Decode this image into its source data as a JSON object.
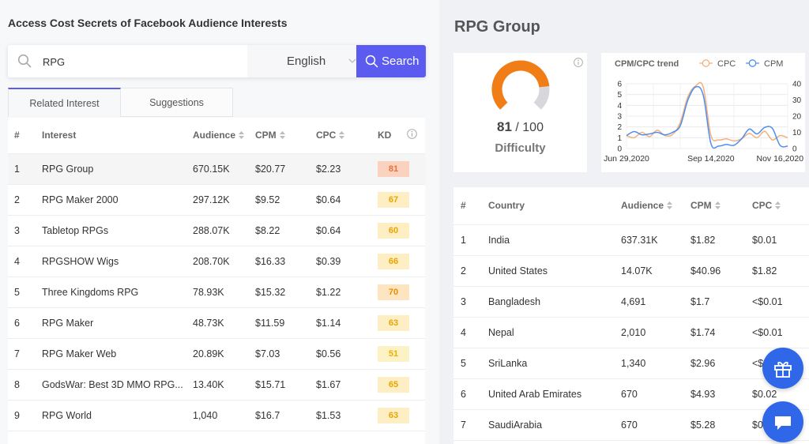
{
  "page_heading": "Access Cost Secrets of Facebook Audience Interests",
  "search": {
    "value": "RPG",
    "language": "English",
    "button_label": "Search"
  },
  "tabs": [
    {
      "label": "Related Interest",
      "active": true
    },
    {
      "label": "Suggestions",
      "active": false
    }
  ],
  "interest_table": {
    "headers": {
      "num": "#",
      "interest": "Interest",
      "audience": "Audience",
      "cpm": "CPM",
      "cpc": "CPC",
      "kd": "KD"
    },
    "rows": [
      {
        "num": "1",
        "interest": "RPG Group",
        "audience": "670.15K",
        "cpm": "$20.77",
        "cpc": "$2.23",
        "kd": "81",
        "kd_bg": "#fbd2bf",
        "kd_color": "#e8703a"
      },
      {
        "num": "2",
        "interest": "RPG Maker 2000",
        "audience": "297.12K",
        "cpm": "$9.52",
        "cpc": "$0.64",
        "kd": "67",
        "kd_bg": "#fdefc3",
        "kd_color": "#e9a400"
      },
      {
        "num": "3",
        "interest": "Tabletop RPGs",
        "audience": "288.07K",
        "cpm": "$8.22",
        "cpc": "$0.64",
        "kd": "60",
        "kd_bg": "#fdefc3",
        "kd_color": "#e9a400"
      },
      {
        "num": "4",
        "interest": "RPGSHOW Wigs",
        "audience": "208.70K",
        "cpm": "$16.33",
        "cpc": "$0.39",
        "kd": "66",
        "kd_bg": "#fdefc3",
        "kd_color": "#e9a400"
      },
      {
        "num": "5",
        "interest": "Three Kingdoms RPG",
        "audience": "78.93K",
        "cpm": "$15.32",
        "cpc": "$1.22",
        "kd": "70",
        "kd_bg": "#fde5c2",
        "kd_color": "#e98d00"
      },
      {
        "num": "6",
        "interest": "RPG Maker",
        "audience": "48.73K",
        "cpm": "$11.59",
        "cpc": "$1.14",
        "kd": "63",
        "kd_bg": "#fdefc3",
        "kd_color": "#e9a400"
      },
      {
        "num": "7",
        "interest": "RPG Maker Web",
        "audience": "20.89K",
        "cpm": "$7.03",
        "cpc": "$0.56",
        "kd": "51",
        "kd_bg": "#fdf2c6",
        "kd_color": "#e9b000"
      },
      {
        "num": "8",
        "interest": "GodsWar: Best 3D MMO RPG...",
        "audience": "13.40K",
        "cpm": "$15.71",
        "cpc": "$1.67",
        "kd": "65",
        "kd_bg": "#fdefc3",
        "kd_color": "#e9a400"
      },
      {
        "num": "9",
        "interest": "RPG World",
        "audience": "1,040",
        "cpm": "$16.7",
        "cpc": "$1.53",
        "kd": "63",
        "kd_bg": "#fdefc3",
        "kd_color": "#e9a400"
      }
    ]
  },
  "group": {
    "title": "RPG Group",
    "difficulty_score": "81",
    "difficulty_max": "/ 100",
    "difficulty_label": "Difficulty",
    "difficulty_fraction": 0.81
  },
  "chart_data": {
    "type": "line",
    "title": "CPM/CPC trend",
    "legend": [
      "CPC",
      "CPM"
    ],
    "legend_position": "top",
    "x_tick_labels": [
      "Jun 29,2020",
      "Sep 14,2020",
      "Nov 16,2020"
    ],
    "x": [
      "2020-06-29",
      "2020-07-06",
      "2020-07-13",
      "2020-07-20",
      "2020-07-27",
      "2020-08-03",
      "2020-08-10",
      "2020-08-17",
      "2020-08-24",
      "2020-08-31",
      "2020-09-07",
      "2020-09-14",
      "2020-09-21",
      "2020-09-28",
      "2020-10-05",
      "2020-10-12",
      "2020-10-19",
      "2020-10-26",
      "2020-11-02",
      "2020-11-09",
      "2020-11-16",
      "2020-11-23"
    ],
    "left_axis": {
      "ylim": [
        0,
        6
      ],
      "ticks": [
        0,
        1,
        2,
        3,
        4,
        5,
        6
      ]
    },
    "right_axis": {
      "ylim": [
        0,
        40
      ],
      "ticks": [
        0,
        10,
        20,
        30,
        40
      ]
    },
    "grid": true,
    "series": [
      {
        "name": "CPC",
        "axis": "left",
        "color": "#f5b07a",
        "values": [
          1.2,
          1.0,
          1.5,
          1.1,
          1.7,
          1.2,
          1.3,
          2.4,
          4.8,
          5.8,
          5.7,
          1.2,
          0.8,
          0.9,
          0.7,
          0.9,
          1.4,
          1.0,
          1.6,
          0.8,
          1.2,
          1.0
        ]
      },
      {
        "name": "CPM",
        "axis": "right",
        "color": "#4d8ef0",
        "values": [
          8.0,
          10.5,
          8.5,
          9.0,
          10.0,
          8.5,
          10.0,
          14.0,
          30.0,
          38.0,
          33.0,
          3.0,
          1.5,
          2.5,
          2.0,
          6.0,
          12.0,
          9.0,
          13.0,
          12.5,
          2.0,
          1.5
        ]
      }
    ]
  },
  "country_table": {
    "headers": {
      "num": "#",
      "country": "Country",
      "audience": "Audience",
      "cpm": "CPM",
      "cpc": "CPC"
    },
    "rows": [
      {
        "num": "1",
        "country": "India",
        "audience": "637.31K",
        "cpm": "$1.82",
        "cpc": "$0.01"
      },
      {
        "num": "2",
        "country": "United States",
        "audience": "14.07K",
        "cpm": "$40.96",
        "cpc": "$1.82"
      },
      {
        "num": "3",
        "country": "Bangladesh",
        "audience": "4,691",
        "cpm": "$1.7",
        "cpc": "<$0.01"
      },
      {
        "num": "4",
        "country": "Nepal",
        "audience": "2,010",
        "cpm": "$1.74",
        "cpc": "<$0.01"
      },
      {
        "num": "5",
        "country": "SriLanka",
        "audience": "1,340",
        "cpm": "$2.96",
        "cpc": "<$"
      },
      {
        "num": "6",
        "country": "United Arab Emirates",
        "audience": "670",
        "cpm": "$4.93",
        "cpc": "$0.02"
      },
      {
        "num": "7",
        "country": "SaudiArabia",
        "audience": "670",
        "cpm": "$5.28",
        "cpc": "$0"
      }
    ]
  },
  "icons": {
    "search": "search-icon",
    "gift": "gift-icon",
    "chat": "chat-icon"
  },
  "colors": {
    "accent": "#5b5bf0",
    "gauge": "#f07d16",
    "fab": "#2f67e8"
  }
}
